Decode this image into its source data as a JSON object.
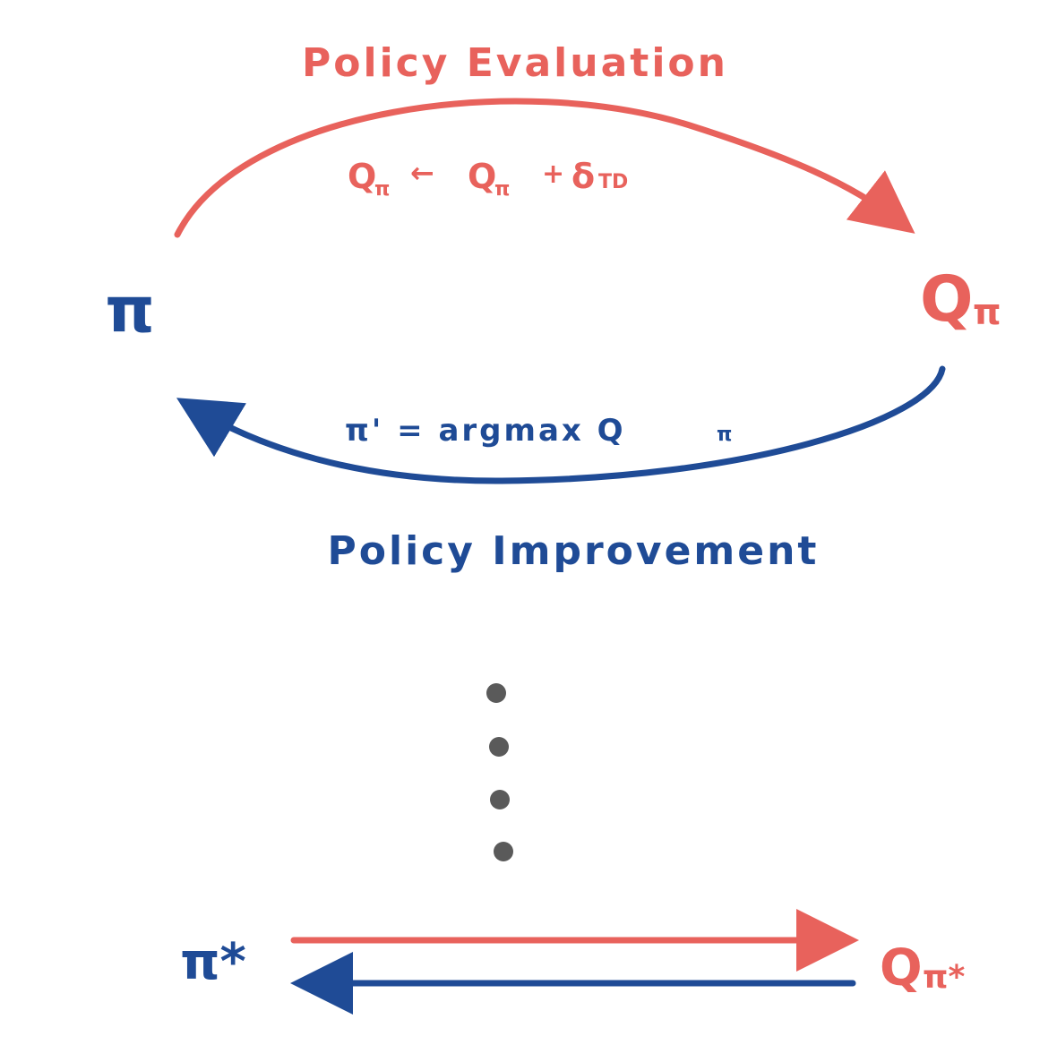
{
  "title_top": "Policy Evaluation",
  "title_bottom": "Policy Improvement",
  "eval_update": {
    "lhs": "Q",
    "lhs_sub": "π",
    "arrow": "←",
    "rhs": "Q",
    "rhs_sub": "π",
    "plus": "+",
    "delta": "δ",
    "delta_sub": "TD"
  },
  "improve_update": "π' = argmax Q",
  "improve_update_sub": "π",
  "policy_node": "π",
  "value_node": {
    "main": "Q",
    "sub": "π"
  },
  "policy_star_node": "π*",
  "value_star_node": {
    "main": "Q",
    "sub": "π*"
  },
  "colors": {
    "evaluation": "#E8625C",
    "improvement": "#1F4B96",
    "dots": "#5A5A5A",
    "background": "#FFFFFF"
  }
}
